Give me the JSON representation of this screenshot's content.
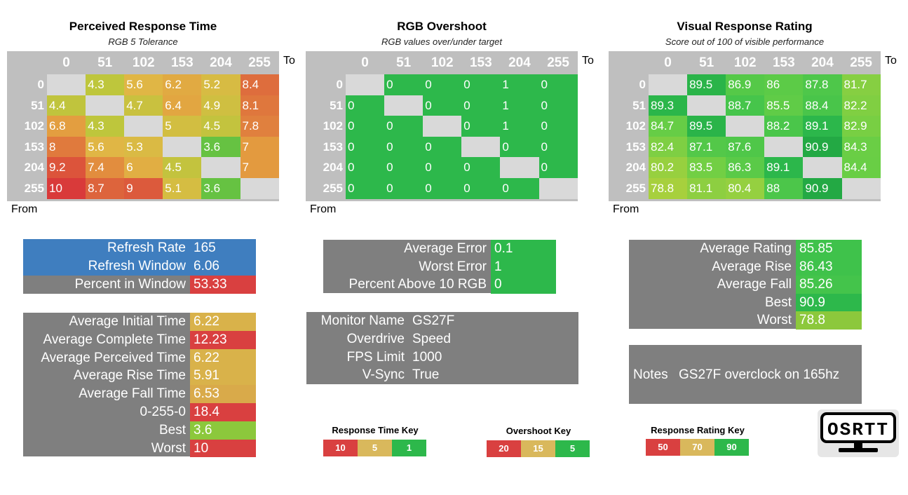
{
  "colors": {
    "good": "#2db84b",
    "mid": "#d9b85c",
    "bad": "#d94040",
    "panel_gray": "#7f7f7f",
    "header_gray": "#bfbfbf",
    "blue": "#3f7ebf",
    "diag": "#d9d9d9"
  },
  "axis": {
    "to": "To",
    "from": "From"
  },
  "chart_data": [
    {
      "type": "heatmap",
      "title": "Perceived Response Time",
      "subtitle": "RGB 5 Tolerance",
      "columns": [
        "0",
        "51",
        "102",
        "153",
        "204",
        "255"
      ],
      "rows": [
        "0",
        "51",
        "102",
        "153",
        "204",
        "255"
      ],
      "values": [
        [
          null,
          "4.3",
          "5.6",
          "6.2",
          "5.2",
          "8.4"
        ],
        [
          "4.4",
          null,
          "4.7",
          "6.4",
          "4.9",
          "8.1"
        ],
        [
          "6.8",
          "4.3",
          null,
          "5",
          "4.5",
          "7.8"
        ],
        [
          "8",
          "5.6",
          "5.3",
          null,
          "3.6",
          "7"
        ],
        [
          "9.2",
          "7.4",
          "6",
          "4.5",
          null,
          "7"
        ],
        [
          "10",
          "8.7",
          "9",
          "5.1",
          "3.6",
          null
        ]
      ],
      "scale": "response"
    },
    {
      "type": "heatmap",
      "title": "RGB Overshoot",
      "subtitle": "RGB values over/under target",
      "columns": [
        "0",
        "51",
        "102",
        "153",
        "204",
        "255"
      ],
      "rows": [
        "0",
        "51",
        "102",
        "153",
        "204",
        "255"
      ],
      "values": [
        [
          null,
          "0",
          "0",
          "0",
          "1",
          "0"
        ],
        [
          "0",
          null,
          "0",
          "0",
          "1",
          "0"
        ],
        [
          "0",
          "0",
          null,
          "0",
          "1",
          "0"
        ],
        [
          "0",
          "0",
          "0",
          null,
          "0",
          "0"
        ],
        [
          "0",
          "0",
          "0",
          "0",
          null,
          "0"
        ],
        [
          "0",
          "0",
          "0",
          "0",
          "0",
          null
        ]
      ],
      "scale": "overshoot"
    },
    {
      "type": "heatmap",
      "title": "Visual Response Rating",
      "subtitle": "Score out of 100 of visible performance",
      "columns": [
        "0",
        "51",
        "102",
        "153",
        "204",
        "255"
      ],
      "rows": [
        "0",
        "51",
        "102",
        "153",
        "204",
        "255"
      ],
      "values": [
        [
          null,
          "89.5",
          "86.9",
          "86",
          "87.8",
          "81.7"
        ],
        [
          "89.3",
          null,
          "88.7",
          "85.5",
          "88.4",
          "82.2"
        ],
        [
          "84.7",
          "89.5",
          null,
          "88.2",
          "89.1",
          "82.9"
        ],
        [
          "82.4",
          "87.1",
          "87.6",
          null,
          "90.9",
          "84.3"
        ],
        [
          "80.2",
          "83.5",
          "86.3",
          "89.1",
          null,
          "84.4"
        ],
        [
          "78.8",
          "81.1",
          "80.4",
          "88",
          "90.9",
          null
        ]
      ],
      "scale": "rating"
    }
  ],
  "refresh": [
    {
      "label": "Refresh Rate",
      "value": "165",
      "color": "#3f7ebf"
    },
    {
      "label": "Refresh Window",
      "value": "6.06",
      "color": "#3f7ebf"
    },
    {
      "label": "Percent in Window",
      "value": "53.33",
      "color": "#d94040"
    }
  ],
  "times": [
    {
      "label": "Average Initial Time",
      "value": "6.22",
      "color": "#d9b24a"
    },
    {
      "label": "Average Complete Time",
      "value": "12.23",
      "color": "#d94040"
    },
    {
      "label": "Average Perceived Time",
      "value": "6.22",
      "color": "#d9b24a"
    },
    {
      "label": "Average Rise Time",
      "value": "5.91",
      "color": "#d9b24a"
    },
    {
      "label": "Average Fall Time",
      "value": "6.53",
      "color": "#d9aa4a"
    },
    {
      "label": "0-255-0",
      "value": "18.4",
      "color": "#d94040"
    },
    {
      "label": "Best",
      "value": "3.6",
      "color": "#8cc83c"
    },
    {
      "label": "Worst",
      "value": "10",
      "color": "#d94040"
    }
  ],
  "errors": [
    {
      "label": "Average Error",
      "value": "0.1",
      "color": "#2db84b"
    },
    {
      "label": "Worst Error",
      "value": "1",
      "color": "#2db84b"
    },
    {
      "label": "Percent Above 10 RGB",
      "value": "0",
      "color": "#2db84b"
    }
  ],
  "monitor": [
    {
      "label": "Monitor Name",
      "value": "GS27F"
    },
    {
      "label": "Overdrive",
      "value": "Speed"
    },
    {
      "label": "FPS Limit",
      "value": "1000"
    },
    {
      "label": "V-Sync",
      "value": "True"
    }
  ],
  "ratings": [
    {
      "label": "Average Rating",
      "value": "85.85",
      "color": "#3fc24b"
    },
    {
      "label": "Average Rise",
      "value": "86.43",
      "color": "#3fc24b"
    },
    {
      "label": "Average Fall",
      "value": "85.26",
      "color": "#44c44b"
    },
    {
      "label": "Best",
      "value": "90.9",
      "color": "#2db84b"
    },
    {
      "label": "Worst",
      "value": "78.8",
      "color": "#8cc83c"
    }
  ],
  "notes": {
    "label": "Notes",
    "value": "GS27F overclock on 165hz"
  },
  "keys": [
    {
      "title": "Response Time Key",
      "values": [
        "10",
        "5",
        "1"
      ]
    },
    {
      "title": "Overshoot Key",
      "values": [
        "20",
        "15",
        "5"
      ]
    },
    {
      "title": "Response Rating Key",
      "values": [
        "50",
        "70",
        "90"
      ]
    }
  ],
  "logo": {
    "text": "OSRTT",
    "icon": "monitor-icon"
  }
}
